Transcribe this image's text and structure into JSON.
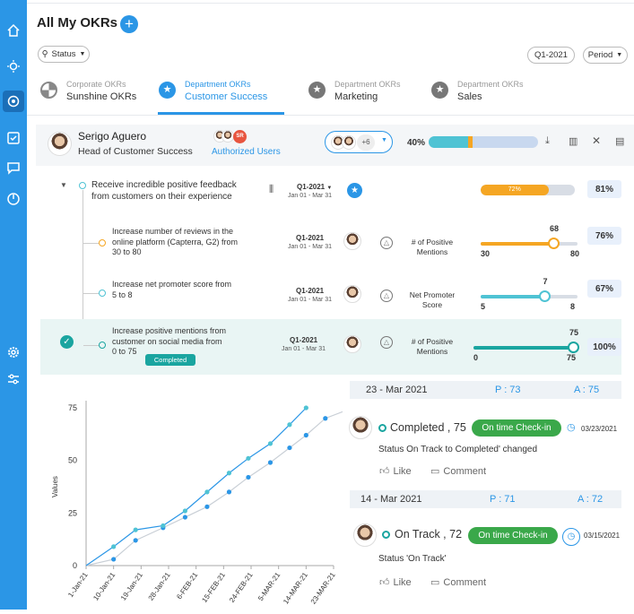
{
  "page": {
    "title": "All My OKRs"
  },
  "filters": {
    "status": "Status",
    "quarter": "Q1-2021",
    "period": "Period"
  },
  "tabs": [
    {
      "type": "Corporate OKRs",
      "name": "Sunshine OKRs"
    },
    {
      "type": "Department OKRs",
      "name": "Customer Success"
    },
    {
      "type": "Department OKRs",
      "name": "Marketing"
    },
    {
      "type": "Department OKRs",
      "name": "Sales"
    }
  ],
  "owner": {
    "name": "Serigo Aguero",
    "role": "Head of Customer Success",
    "authorized_label": "Authorized Users",
    "users_more": "+6",
    "avatar_initials": "SR",
    "progress_pct": "40%"
  },
  "objective": {
    "title_line1": "Receive incredible positive feedback",
    "title_line2": "from customers on their experience",
    "quarter": "Q1-2021",
    "dates": "Jan 01 - Mar 31",
    "progress_label": "72%",
    "progress_value": 72,
    "pct": "81%"
  },
  "key_results": [
    {
      "line1": "Increase number of reviews in the",
      "line2": "online platform (Capterra, G2) from",
      "line3": "30 to 80",
      "quarter": "Q1-2021",
      "dates": "Jan 01 - Mar 31",
      "metric1": "# of Positive",
      "metric2": "Mentions",
      "start": "30",
      "current": "68",
      "target": "80",
      "pct": "76%",
      "fill": 0.76,
      "color": "#f5a623"
    },
    {
      "line1": "Increase net promoter score from",
      "line2": "5 to 8",
      "line3": "",
      "quarter": "Q1-2021",
      "dates": "Jan 01 - Mar 31",
      "metric1": "Net Promoter",
      "metric2": "Score",
      "start": "5",
      "current": "7",
      "target": "8",
      "pct": "67%",
      "fill": 0.67,
      "color": "#4fc3d4"
    },
    {
      "line1": "Increase positive mentions from",
      "line2": "customer on social media from",
      "line3": "0 to 75",
      "quarter": "Q1-2021",
      "dates": "Jan 01 - Mar 31",
      "metric1": "# of Positive",
      "metric2": "Mentions",
      "start": "0",
      "current": "75",
      "target": "75",
      "pct": "100%",
      "fill": 1.0,
      "color": "#1aa5a0",
      "badge": "Completed"
    }
  ],
  "checkins": [
    {
      "date": "23 -  Mar 2021",
      "p": "P : 73",
      "a": "A : 75",
      "status_text": "Completed , 75",
      "pill": "On time Check-in",
      "date_small": "03/23/2021",
      "note": "Status On Track to Completed' changed",
      "like": "Like",
      "comment": "Comment"
    },
    {
      "date": "14 -  Mar 2021",
      "p": "P : 71",
      "a": "A : 72",
      "status_text": "On Track , 72",
      "pill": "On time Check-in",
      "date_small": "03/15/2021",
      "note": "Status 'On Track'",
      "like": "Like",
      "comment": "Comment"
    }
  ],
  "chart_data": {
    "type": "line",
    "ylabel": "Values",
    "ylim": [
      0,
      75
    ],
    "yticks": [
      0,
      25,
      50,
      75
    ],
    "x": [
      "1-Jan-21",
      "10-Jan-21",
      "19-Jan-21",
      "28-Jan-21",
      "6-FEB-21",
      "15-FEB-21",
      "24-FEB-21",
      "5-MAR-21",
      "14-MAR-21",
      "23-MAR-21"
    ],
    "series": [
      {
        "color": "#2b96e6",
        "points": [
          [
            0.0,
            0
          ],
          [
            1.0,
            9
          ],
          [
            1.8,
            17
          ],
          [
            2.8,
            19
          ],
          [
            3.6,
            26
          ],
          [
            4.4,
            35
          ],
          [
            5.2,
            44
          ],
          [
            5.9,
            51
          ],
          [
            6.7,
            58
          ],
          [
            7.4,
            67
          ],
          [
            8.0,
            75
          ]
        ]
      },
      {
        "color": "#c9cfd6",
        "points": [
          [
            0.0,
            0
          ],
          [
            1.0,
            3
          ],
          [
            1.8,
            12
          ],
          [
            2.8,
            18
          ],
          [
            3.6,
            23
          ],
          [
            4.4,
            28
          ],
          [
            5.2,
            35
          ],
          [
            5.9,
            42
          ],
          [
            6.7,
            49
          ],
          [
            7.4,
            56
          ],
          [
            8.0,
            62
          ],
          [
            8.7,
            70
          ],
          [
            9.5,
            74
          ]
        ]
      }
    ]
  }
}
